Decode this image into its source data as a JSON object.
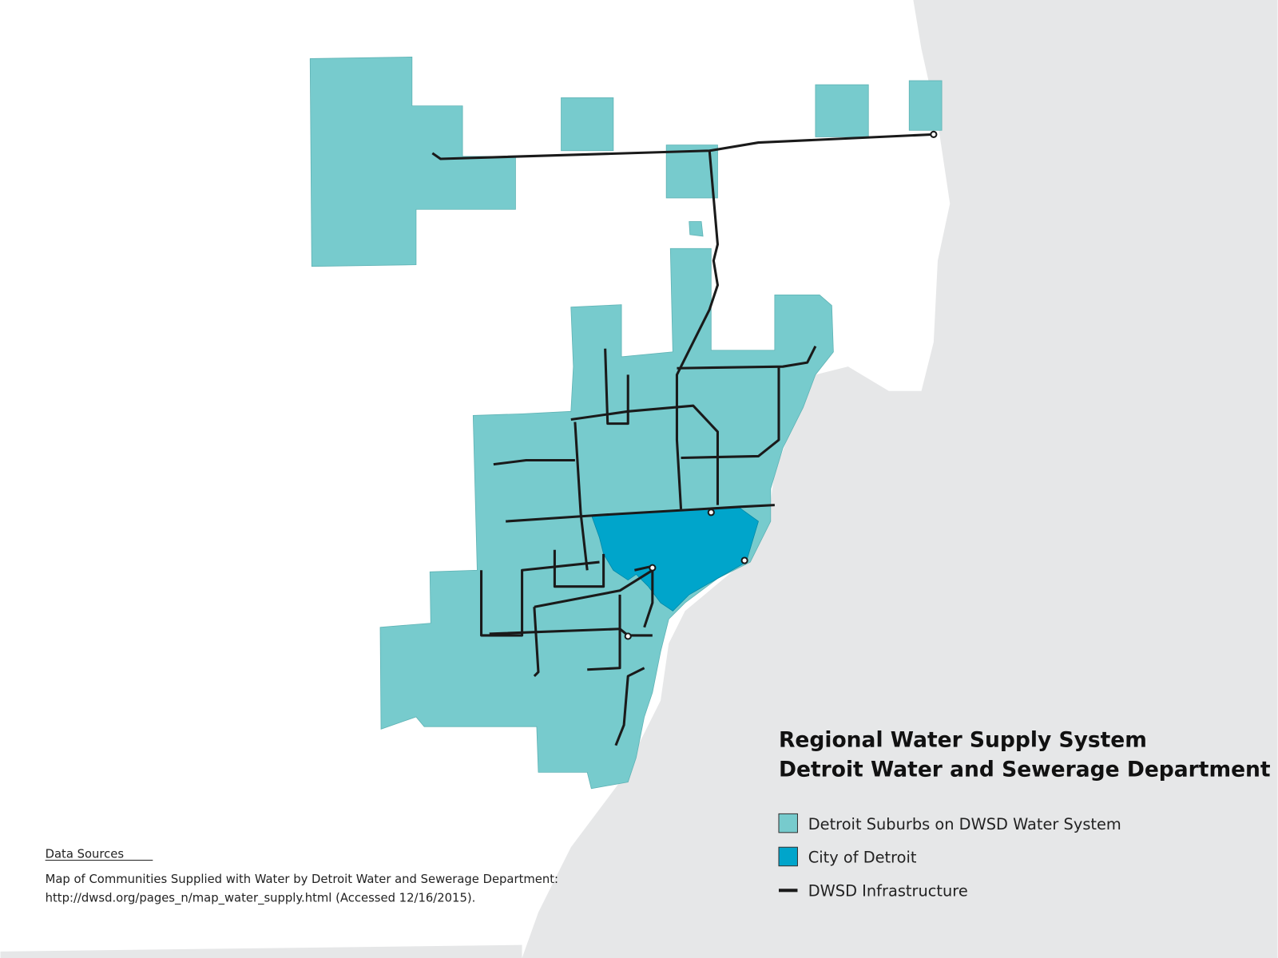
{
  "title": [
    "Regional Water Supply System",
    "Detroit Water and Sewerage Department"
  ],
  "legend": [
    {
      "label": "Detroit Suburbs on DWSD Water System",
      "color": "#77cbcd"
    },
    {
      "label": "City of Detroit",
      "color": "#00a5cb"
    },
    {
      "label": "DWSD Infrastructure",
      "color": "#1a1a1a"
    }
  ],
  "sources": {
    "heading": "Data Sources",
    "text": [
      "Map of Communities Supplied with Water by Detroit Water and Sewerage Department:",
      "http://dwsd.org/pages_n/map_water_supply.html (Accessed 12/16/2015)."
    ]
  }
}
